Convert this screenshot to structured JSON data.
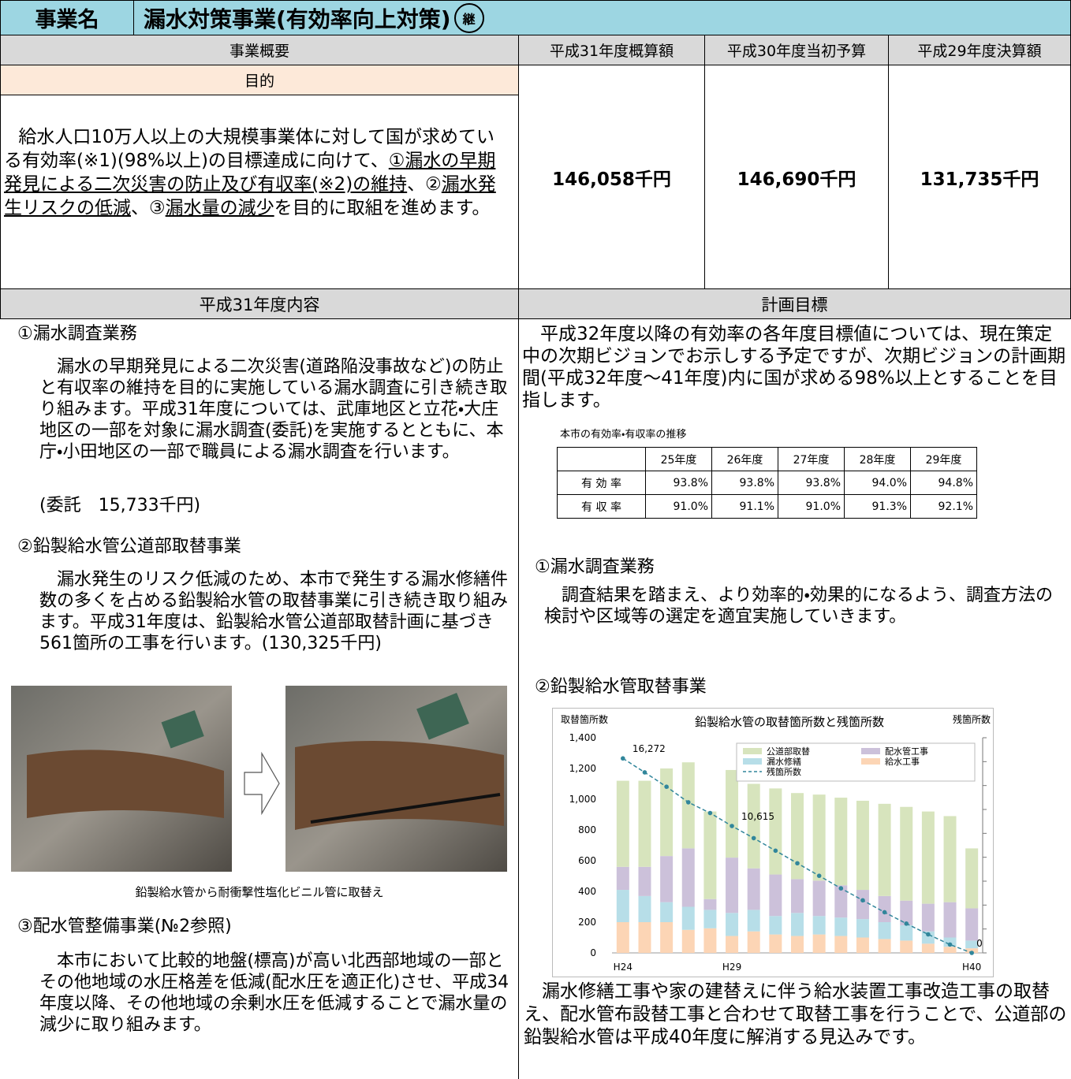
{
  "header": {
    "label": "事業名",
    "title": "漏水対策事業(有効率向上対策)",
    "badge": "継"
  },
  "budget": {
    "overview_header": "事業概要",
    "columns": [
      "平成31年度概算額",
      "平成30年度当初予算",
      "平成29年度決算額"
    ],
    "purpose_header": "目的",
    "purpose": [
      {
        "text": "給水人口10万人以上の大規模事業体に対して国が求めている有効率(※1)(98%以上)の目標達成に向けて、",
        "underline": false
      },
      {
        "text": "①漏水の早期発見による二次災害の防止及び有収率(※2)の維持",
        "underline": true
      },
      {
        "text": "、②",
        "underline": false
      },
      {
        "text": "漏水発生リスクの低減",
        "underline": true
      },
      {
        "text": "、③",
        "underline": false
      },
      {
        "text": "漏水量の減少",
        "underline": true
      },
      {
        "text": "を目的に取組を進めます。",
        "underline": false
      }
    ],
    "amounts": [
      "146,058千円",
      "146,690千円",
      "131,735千円"
    ]
  },
  "content": {
    "header": "平成31年度内容",
    "sections": [
      {
        "title": "①漏水調査業務",
        "body": "漏水の早期発見による二次災害(道路陥没事故など)の防止と有収率の維持を目的に実施している漏水調査に引き続き取り組みます。平成31年度については、武庫地区と立花・大庄地区の一部を対象に漏水調査(委託)を実施するとともに、本庁・小田地区の一部で職員による漏水調査を行います。",
        "note": "(委託　15,733千円)"
      },
      {
        "title": "②鉛製給水管公道部取替事業",
        "body": "漏水発生のリスク低減のため、本市で発生する漏水修繕件数の多くを占める鉛製給水管の取替事業に引き続き取り組みます。平成31年度は、鉛製給水管公道部取替計画に基づき561箇所の工事を行います。(130,325千円)"
      },
      {
        "title": "③配水管整備事業(№2参照)",
        "body": "本市において比較的地盤(標高)が高い北西部地域の一部とその他地域の水圧格差を低減(配水圧を適正化)させ、平成34年度以降、その他地域の余剰水圧を低減することで漏水量の減少に取り組みます。"
      }
    ],
    "photo_caption": "鉛製給水管から耐衝撃性塩化ビニル管に取替え"
  },
  "target": {
    "header": "計画目標",
    "intro": "平成32年度以降の有効率の各年度目標値については、現在策定中の次期ビジョンでお示しする予定ですが、次期ビジョンの計画期間(平成32年度～41年度)内に国が求める98%以上とすることを目指します。",
    "table": {
      "caption": "本市の有効率・有収率の推移",
      "columns": [
        "25年度",
        "26年度",
        "27年度",
        "28年度",
        "29年度"
      ],
      "rows": [
        {
          "label": "有 効 率",
          "values": [
            "93.8%",
            "93.8%",
            "93.8%",
            "94.0%",
            "94.8%"
          ]
        },
        {
          "label": "有 収 率",
          "values": [
            "91.0%",
            "91.1%",
            "91.0%",
            "91.3%",
            "92.1%"
          ]
        }
      ]
    },
    "sections": [
      {
        "title": "①漏水調査業務",
        "body": "調査結果を踏まえ、より効率的・効果的になるよう、調査方法の検討や区域等の選定を適宜実施していきます。"
      },
      {
        "title": "②鉛製給水管取替事業"
      }
    ],
    "conclusion": "漏水修繕工事や家の建替えに伴う給水装置工事改造工事の取替え、配水管布設替工事と合わせて取替工事を行うことで、公道部の鉛製給水管は平成40年度に解消する見込みです。"
  },
  "chart_data": {
    "type": "bar",
    "title": "鉛製給水管の取替箇所数と残箇所数",
    "y_label": "取替箇所数",
    "y2_label": "残箇所数",
    "stacked": true,
    "categories": [
      "H24",
      null,
      null,
      null,
      null,
      "H29",
      null,
      null,
      null,
      null,
      null,
      null,
      null,
      null,
      null,
      null,
      "H40"
    ],
    "series": [
      {
        "name": "公道部取替",
        "color": "#d7e4bd",
        "values": [
          560,
          560,
          570,
          560,
          570,
          570,
          550,
          560,
          560,
          560,
          570,
          580,
          600,
          610,
          600,
          560,
          390
        ]
      },
      {
        "name": "配水管工事",
        "color": "#ccc1da",
        "values": [
          150,
          190,
          300,
          380,
          70,
          360,
          270,
          270,
          220,
          230,
          210,
          190,
          170,
          160,
          180,
          230,
          210
        ]
      },
      {
        "name": "漏水修繕",
        "color": "#b7dee8",
        "values": [
          210,
          170,
          130,
          150,
          120,
          150,
          140,
          120,
          150,
          120,
          120,
          120,
          110,
          100,
          80,
          60,
          50
        ]
      },
      {
        "name": "給水工事",
        "color": "#fcd5b5",
        "values": [
          200,
          200,
          200,
          150,
          160,
          110,
          140,
          120,
          110,
          120,
          110,
          100,
          90,
          80,
          60,
          40,
          30
        ]
      },
      {
        "name": "残箇所数",
        "color": "#31869b",
        "type": "line",
        "axis": "y2",
        "values": [
          16272,
          15100,
          13900,
          12600,
          11700,
          10615,
          9600,
          8550,
          7500,
          6450,
          5400,
          4400,
          3400,
          2450,
          1550,
          700,
          0
        ],
        "value_labels": [
          "16,272",
          null,
          null,
          null,
          null,
          "10,615",
          null,
          null,
          null,
          null,
          null,
          null,
          null,
          null,
          null,
          null,
          "0"
        ]
      }
    ],
    "ylim": [
      0,
      1400
    ],
    "yticks": [
      0,
      200,
      400,
      600,
      800,
      {
        "value": 1000,
        "label": "1,000"
      },
      {
        "value": 1200,
        "label": "1,200"
      },
      {
        "value": 1400,
        "label": "1,400"
      }
    ],
    "y2lim": [
      0,
      18000
    ],
    "y2ticks": [
      0,
      {
        "value": 2000,
        "label": "2,000"
      },
      {
        "value": 4000,
        "label": "4,000"
      },
      {
        "value": 6000,
        "label": "6,000"
      },
      {
        "value": 8000,
        "label": "8,000"
      },
      {
        "value": 10000,
        "label": "10,000"
      },
      {
        "value": 12000,
        "label": "12,000"
      },
      {
        "value": 14000,
        "label": "14,000"
      },
      {
        "value": 16000,
        "label": "16,000"
      },
      {
        "value": 18000,
        "label": "18,000"
      }
    ],
    "legend": "top-right"
  }
}
